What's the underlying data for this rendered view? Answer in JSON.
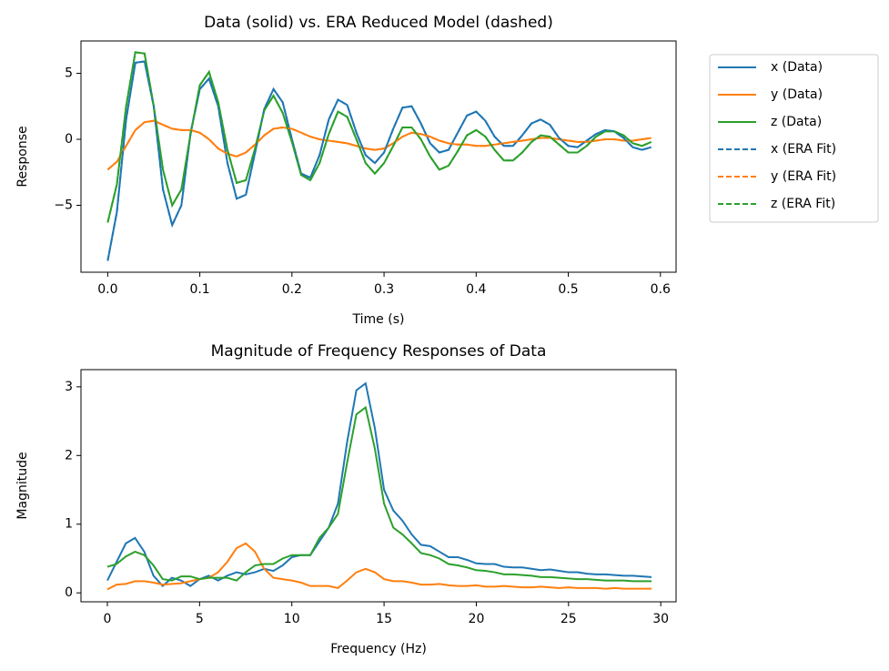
{
  "chart_data": [
    {
      "type": "line",
      "title": "Data (solid) vs. ERA Reduced Model (dashed)",
      "x_label": "Time (s)",
      "y_label": "Response",
      "xlim": [
        -0.029,
        0.617
      ],
      "ylim": [
        -10.07,
        7.45
      ],
      "xticks": [
        {
          "value": 0,
          "label": "0.0"
        },
        0.1,
        0.2,
        0.3,
        0.4,
        0.5,
        0.6
      ],
      "yticks": [
        {
          "value": -5,
          "label": "−5"
        },
        0,
        5
      ],
      "legend": "outside right",
      "x": [
        0,
        0.01,
        0.02,
        0.03,
        0.04,
        0.05,
        0.06,
        0.07,
        0.08,
        0.09,
        0.1,
        0.11,
        0.12,
        0.13,
        0.14,
        0.15,
        0.16,
        0.17,
        0.18,
        0.19,
        0.2,
        0.21,
        0.22,
        0.23,
        0.24,
        0.25,
        0.26,
        0.27,
        0.28,
        0.29,
        0.3,
        0.31,
        0.32,
        0.33,
        0.34,
        0.35,
        0.36,
        0.37,
        0.38,
        0.39,
        0.4,
        0.41,
        0.42,
        0.43,
        0.44,
        0.45,
        0.46,
        0.47,
        0.48,
        0.49,
        0.5,
        0.51,
        0.52,
        0.53,
        0.54,
        0.55,
        0.56,
        0.57,
        0.58,
        0.59
      ],
      "series": [
        {
          "name": "x (Data)",
          "color": "#1f77b4",
          "linestyle": "solid",
          "values": [
            -9.2,
            -5.5,
            1.5,
            5.8,
            5.9,
            2.5,
            -3.8,
            -6.5,
            -5,
            0.5,
            3.8,
            4.6,
            2.5,
            -1.8,
            -4.5,
            -4.2,
            -1,
            2.3,
            3.8,
            2.8,
            0,
            -2.6,
            -2.9,
            -1.2,
            1.5,
            3,
            2.6,
            0.5,
            -1.2,
            -1.8,
            -1,
            0.8,
            2.4,
            2.5,
            1.2,
            -0.3,
            -1,
            -0.8,
            0.5,
            1.8,
            2.1,
            1.4,
            0.2,
            -0.5,
            -0.5,
            0.3,
            1.2,
            1.5,
            1.1,
            0.1,
            -0.5,
            -0.6,
            -0.1,
            0.4,
            0.7,
            0.6,
            0.1,
            -0.6,
            -0.8,
            -0.6
          ]
        },
        {
          "name": "y (Data)",
          "color": "#ff7f0e",
          "linestyle": "solid",
          "values": [
            -2.3,
            -1.7,
            -0.5,
            0.7,
            1.3,
            1.4,
            1.1,
            0.8,
            0.7,
            0.7,
            0.5,
            0,
            -0.7,
            -1.1,
            -1.3,
            -1,
            -0.4,
            0.3,
            0.8,
            0.9,
            0.8,
            0.5,
            0.2,
            0,
            -0.1,
            -0.2,
            -0.3,
            -0.5,
            -0.7,
            -0.8,
            -0.7,
            -0.3,
            0.2,
            0.5,
            0.4,
            0.2,
            -0.1,
            -0.3,
            -0.4,
            -0.4,
            -0.5,
            -0.5,
            -0.4,
            -0.3,
            -0.2,
            -0.1,
            0,
            0.1,
            0.1,
            0,
            -0.1,
            -0.2,
            -0.2,
            -0.1,
            0,
            0,
            -0.1,
            -0.1,
            0,
            0.1
          ]
        },
        {
          "name": "z (Data)",
          "color": "#2ca02c",
          "linestyle": "solid",
          "values": [
            -6.3,
            -3.4,
            2.5,
            6.6,
            6.5,
            2.5,
            -2.3,
            -5,
            -3.8,
            0.4,
            4.1,
            5.1,
            2.8,
            -0.8,
            -3.3,
            -3.1,
            -0.7,
            2.2,
            3.3,
            2,
            -0.2,
            -2.7,
            -3.1,
            -1.8,
            0.4,
            2.1,
            1.7,
            0,
            -1.8,
            -2.6,
            -1.8,
            -0.5,
            0.9,
            0.9,
            0,
            -1.3,
            -2.3,
            -2,
            -0.9,
            0.3,
            0.7,
            0.2,
            -0.8,
            -1.6,
            -1.6,
            -1,
            -0.2,
            0.3,
            0.2,
            -0.4,
            -1,
            -1,
            -0.5,
            0.2,
            0.6,
            0.6,
            0.3,
            -0.3,
            -0.5,
            -0.2
          ]
        },
        {
          "name": "x (ERA Fit)",
          "color": "#1f77b4",
          "linestyle": "dashed",
          "values": [
            -9.2,
            -5.5,
            1.5,
            5.8,
            5.9,
            2.5,
            -3.8,
            -6.5,
            -5,
            0.5,
            3.8,
            4.6,
            2.5,
            -1.8,
            -4.5,
            -4.2,
            -1,
            2.3,
            3.8,
            2.8,
            0,
            -2.6,
            -2.9,
            -1.2,
            1.5,
            3,
            2.6,
            0.5,
            -1.2,
            -1.8,
            -1,
            0.8,
            2.4,
            2.5,
            1.2,
            -0.3,
            -1,
            -0.8,
            0.5,
            1.8,
            2.1,
            1.4,
            0.2,
            -0.5,
            -0.5,
            0.3,
            1.2,
            1.5,
            1.1,
            0.1,
            -0.5,
            -0.6,
            -0.1,
            0.4,
            0.7,
            0.6,
            0.1,
            -0.6,
            -0.8,
            -0.6
          ]
        },
        {
          "name": "y (ERA Fit)",
          "color": "#ff7f0e",
          "linestyle": "dashed",
          "values": [
            -2.3,
            -1.7,
            -0.5,
            0.7,
            1.3,
            1.4,
            1.1,
            0.8,
            0.7,
            0.7,
            0.5,
            0,
            -0.7,
            -1.1,
            -1.3,
            -1,
            -0.4,
            0.3,
            0.8,
            0.9,
            0.8,
            0.5,
            0.2,
            0,
            -0.1,
            -0.2,
            -0.3,
            -0.5,
            -0.7,
            -0.8,
            -0.7,
            -0.3,
            0.2,
            0.5,
            0.4,
            0.2,
            -0.1,
            -0.3,
            -0.4,
            -0.4,
            -0.5,
            -0.5,
            -0.4,
            -0.3,
            -0.2,
            -0.1,
            0,
            0.1,
            0.1,
            0,
            -0.1,
            -0.2,
            -0.2,
            -0.1,
            0,
            0,
            -0.1,
            -0.1,
            0,
            0.1
          ]
        },
        {
          "name": "z (ERA Fit)",
          "color": "#2ca02c",
          "linestyle": "dashed",
          "values": [
            -6.3,
            -3.4,
            2.5,
            6.6,
            6.5,
            2.5,
            -2.3,
            -5,
            -3.8,
            0.4,
            4.1,
            5.1,
            2.8,
            -0.8,
            -3.3,
            -3.1,
            -0.7,
            2.2,
            3.3,
            2,
            -0.2,
            -2.7,
            -3.1,
            -1.8,
            0.4,
            2.1,
            1.7,
            0,
            -1.8,
            -2.6,
            -1.8,
            -0.5,
            0.9,
            0.9,
            0,
            -1.3,
            -2.3,
            -2,
            -0.9,
            0.3,
            0.7,
            0.2,
            -0.8,
            -1.6,
            -1.6,
            -1,
            -0.2,
            0.3,
            0.2,
            -0.4,
            -1,
            -1,
            -0.5,
            0.2,
            0.6,
            0.6,
            0.3,
            -0.3,
            -0.5,
            -0.2
          ]
        }
      ]
    },
    {
      "type": "line",
      "title": "Magnitude of Frequency Responses of Data",
      "x_label": "Frequency (Hz)",
      "y_label": "Magnitude",
      "xlim": [
        -1.43,
        30.83
      ],
      "ylim": [
        -0.13,
        3.25
      ],
      "xticks": [
        0,
        5,
        10,
        15,
        20,
        25,
        30
      ],
      "yticks": [
        0,
        1,
        2,
        3
      ],
      "x": [
        0,
        0.5,
        1,
        1.5,
        2,
        2.5,
        3,
        3.5,
        4,
        4.5,
        5,
        5.5,
        6,
        6.5,
        7,
        7.5,
        8,
        8.5,
        9,
        9.5,
        10,
        10.5,
        11,
        11.5,
        12,
        12.5,
        13,
        13.5,
        14,
        14.5,
        15,
        15.5,
        16,
        16.5,
        17,
        17.5,
        18,
        18.5,
        19,
        19.5,
        20,
        20.5,
        21,
        21.5,
        22,
        22.5,
        23,
        23.5,
        24,
        24.5,
        25,
        25.5,
        26,
        26.5,
        27,
        27.5,
        28,
        28.5,
        29,
        29.5
      ],
      "series": [
        {
          "color": "#1f77b4",
          "linestyle": "solid",
          "values": [
            0.18,
            0.45,
            0.72,
            0.8,
            0.6,
            0.25,
            0.1,
            0.22,
            0.18,
            0.1,
            0.2,
            0.25,
            0.18,
            0.25,
            0.3,
            0.27,
            0.3,
            0.35,
            0.32,
            0.4,
            0.52,
            0.55,
            0.55,
            0.75,
            0.95,
            1.3,
            2.2,
            2.95,
            3.05,
            2.4,
            1.5,
            1.2,
            1.05,
            0.85,
            0.7,
            0.68,
            0.6,
            0.52,
            0.52,
            0.48,
            0.43,
            0.42,
            0.42,
            0.38,
            0.37,
            0.37,
            0.35,
            0.33,
            0.34,
            0.32,
            0.3,
            0.3,
            0.28,
            0.27,
            0.27,
            0.26,
            0.25,
            0.25,
            0.24,
            0.23
          ]
        },
        {
          "color": "#ff7f0e",
          "linestyle": "solid",
          "values": [
            0.05,
            0.12,
            0.13,
            0.17,
            0.17,
            0.15,
            0.12,
            0.13,
            0.14,
            0.17,
            0.2,
            0.22,
            0.3,
            0.45,
            0.65,
            0.72,
            0.6,
            0.35,
            0.22,
            0.2,
            0.18,
            0.15,
            0.1,
            0.1,
            0.1,
            0.07,
            0.18,
            0.3,
            0.35,
            0.3,
            0.2,
            0.17,
            0.17,
            0.15,
            0.12,
            0.12,
            0.13,
            0.11,
            0.1,
            0.1,
            0.11,
            0.09,
            0.09,
            0.1,
            0.09,
            0.08,
            0.08,
            0.09,
            0.08,
            0.07,
            0.08,
            0.07,
            0.07,
            0.07,
            0.06,
            0.07,
            0.06,
            0.06,
            0.06,
            0.06
          ]
        },
        {
          "color": "#2ca02c",
          "linestyle": "solid",
          "values": [
            0.38,
            0.42,
            0.53,
            0.6,
            0.55,
            0.4,
            0.2,
            0.18,
            0.24,
            0.24,
            0.2,
            0.22,
            0.22,
            0.22,
            0.18,
            0.3,
            0.4,
            0.42,
            0.42,
            0.5,
            0.55,
            0.55,
            0.55,
            0.8,
            0.95,
            1.15,
            1.9,
            2.6,
            2.7,
            2.1,
            1.3,
            0.95,
            0.85,
            0.72,
            0.58,
            0.55,
            0.5,
            0.42,
            0.4,
            0.37,
            0.33,
            0.32,
            0.3,
            0.27,
            0.27,
            0.26,
            0.25,
            0.23,
            0.23,
            0.22,
            0.21,
            0.2,
            0.2,
            0.19,
            0.18,
            0.18,
            0.18,
            0.17,
            0.17,
            0.17
          ]
        }
      ]
    }
  ]
}
